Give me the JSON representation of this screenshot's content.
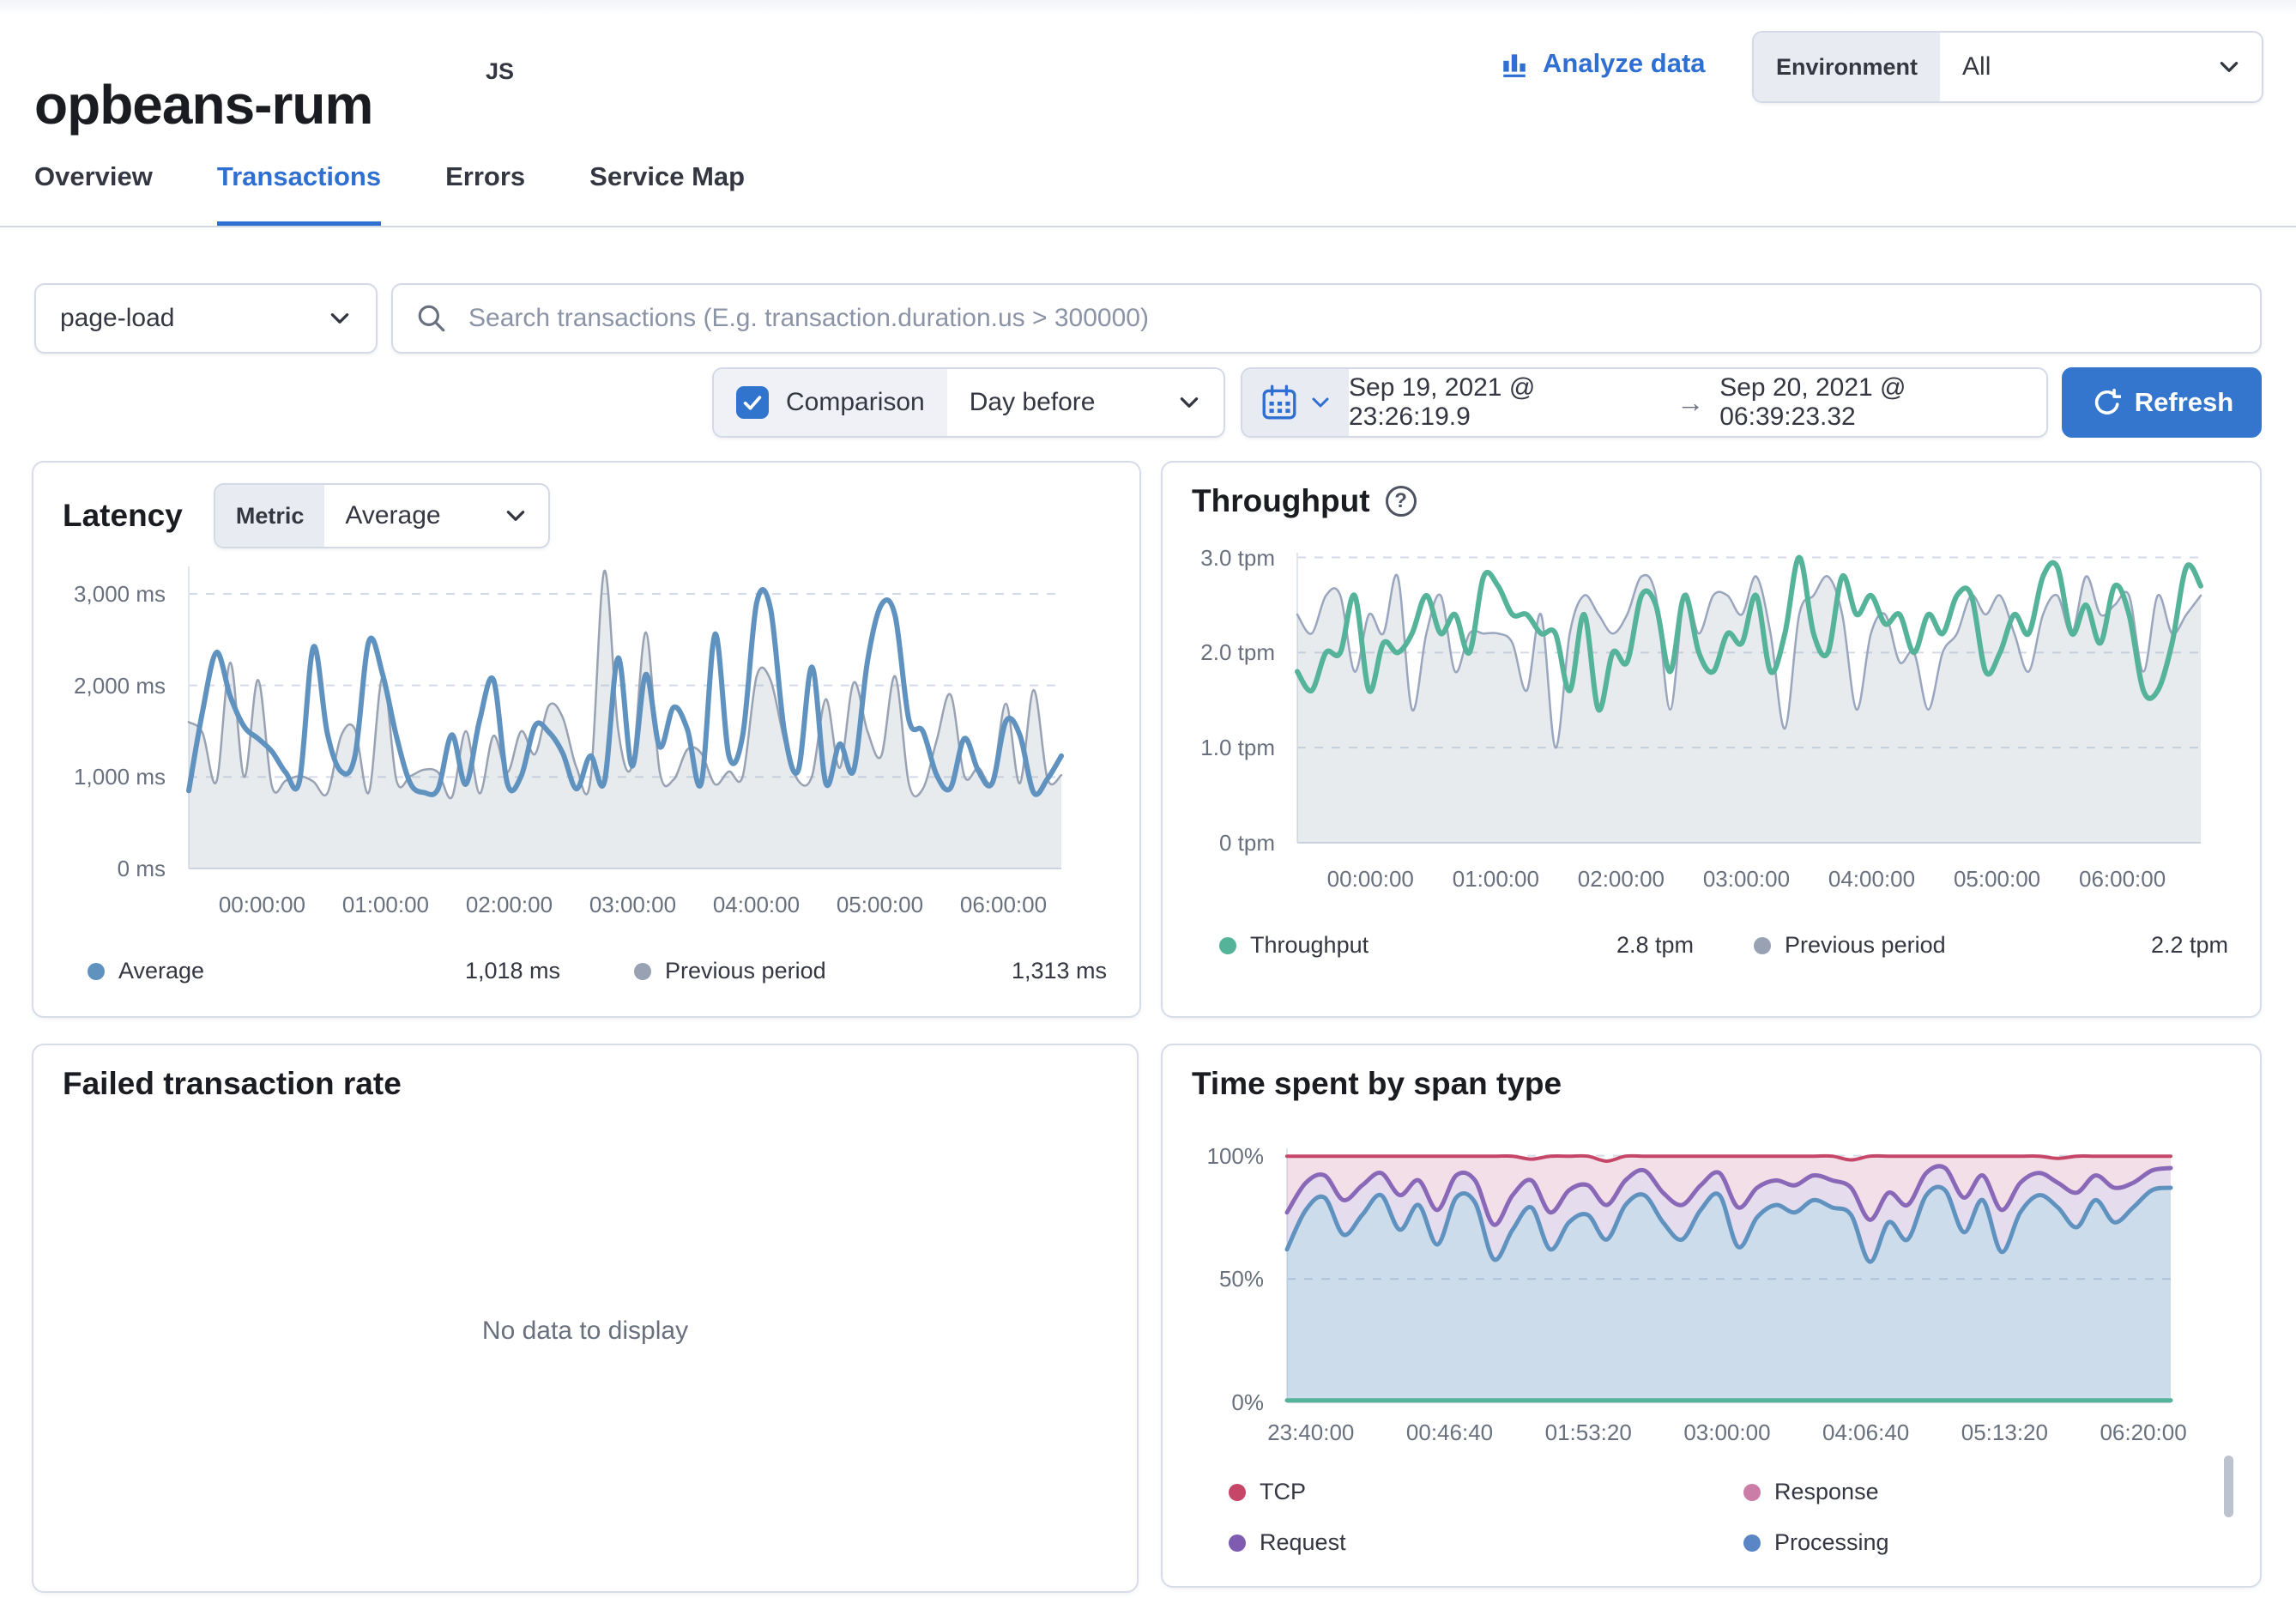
{
  "header": {
    "service_name": "opbeans-rum",
    "agent_badge": "JS",
    "analyze_label": "Analyze data",
    "environment_label": "Environment",
    "environment_value": "All"
  },
  "tabs": [
    {
      "label": "Overview",
      "active": false
    },
    {
      "label": "Transactions",
      "active": true
    },
    {
      "label": "Errors",
      "active": false
    },
    {
      "label": "Service Map",
      "active": false
    }
  ],
  "filters": {
    "transaction_type": "page-load",
    "search_placeholder": "Search transactions (E.g. transaction.duration.us > 300000)",
    "comparison_label": "Comparison",
    "comparison_checked": true,
    "comparison_value": "Day before",
    "date_start": "Sep 19, 2021 @ 23:26:19.9",
    "date_end": "Sep 20, 2021 @ 06:39:23.32",
    "refresh_label": "Refresh"
  },
  "panels": {
    "latency": {
      "title": "Latency",
      "metric_label": "Metric",
      "metric_value": "Average"
    },
    "throughput": {
      "title": "Throughput"
    },
    "failed": {
      "title": "Failed transaction rate",
      "empty_message": "No data to display"
    },
    "timespent": {
      "title": "Time spent by span type"
    }
  },
  "colors": {
    "accent": "#2e6fd1",
    "button_fill": "#3476cd",
    "border": "#d3dae6",
    "text": "#343741",
    "subdued": "#69707d",
    "latency_line": "#6092c0",
    "previous_period": "#98a2b3",
    "throughput_line": "#54b399",
    "tcp": "#c64668",
    "response": "#cb7da8",
    "request": "#8a68b8",
    "processing": "#6092c0"
  },
  "chart_data": [
    {
      "type": "line",
      "title": "Latency",
      "ylabel": "ms",
      "ylim": [
        0,
        3300
      ],
      "grid": true,
      "legend_position": "bottom",
      "yticks": [
        {
          "v": 3000,
          "label": "3,000 ms"
        },
        {
          "v": 2000,
          "label": "2,000 ms"
        },
        {
          "v": 1000,
          "label": "1,000 ms"
        },
        {
          "v": 0,
          "label": "0 ms"
        }
      ],
      "xlabels": [
        "00:00:00",
        "01:00:00",
        "02:00:00",
        "03:00:00",
        "04:00:00",
        "05:00:00",
        "06:00:00"
      ],
      "series": [
        {
          "name": "Previous period",
          "color": "#98a2b3",
          "width": 2.5,
          "fillTo": "zero",
          "fill": "rgba(152,162,179,0.22)",
          "values": [
            1600,
            1480,
            950,
            2250,
            1000,
            2060,
            900,
            960,
            1010,
            950,
            820,
            1450,
            1520,
            830,
            2100,
            960,
            1010,
            1080,
            1050,
            780,
            1500,
            820,
            1450,
            1050,
            1500,
            1250,
            1780,
            1650,
            1100,
            960,
            3250,
            1520,
            1120,
            2580,
            1060,
            970,
            1300,
            1260,
            920,
            1060,
            1010,
            2100,
            2060,
            1400,
            960,
            1010,
            1850,
            1100,
            2030,
            1500,
            1230,
            2100,
            920,
            870,
            1400,
            1900,
            1010,
            1100,
            960,
            1800,
            930,
            1950,
            980,
            1020
          ]
        },
        {
          "name": "Average",
          "color": "#6092c0",
          "width": 6,
          "fillTo": null,
          "fill": null,
          "values": [
            850,
            1720,
            2360,
            1880,
            1550,
            1420,
            1280,
            1050,
            960,
            2420,
            1480,
            1060,
            1230,
            2480,
            2120,
            1440,
            930,
            830,
            870,
            1460,
            920,
            1620,
            2060,
            930,
            1010,
            1560,
            1490,
            1260,
            870,
            1230,
            940,
            2300,
            1120,
            2120,
            1330,
            1760,
            1520,
            930,
            2560,
            1230,
            1460,
            2900,
            2840,
            1500,
            1070,
            2200,
            930,
            1360,
            1070,
            2260,
            2880,
            2760,
            1620,
            1500,
            1020,
            880,
            1420,
            1070,
            930,
            1610,
            1460,
            830,
            980,
            1230
          ]
        }
      ],
      "legend": [
        {
          "label": "Average",
          "value": "1,018 ms",
          "color": "#6092c0"
        },
        {
          "label": "Previous period",
          "value": "1,313 ms",
          "color": "#98a2b3"
        }
      ]
    },
    {
      "type": "line",
      "title": "Throughput",
      "ylabel": "tpm",
      "ylim": [
        0,
        3.05
      ],
      "grid": true,
      "legend_position": "bottom",
      "yticks": [
        {
          "v": 3,
          "label": "3.0 tpm"
        },
        {
          "v": 2,
          "label": "2.0 tpm"
        },
        {
          "v": 1,
          "label": "1.0 tpm"
        },
        {
          "v": 0,
          "label": "0 tpm"
        }
      ],
      "xlabels": [
        "00:00:00",
        "01:00:00",
        "02:00:00",
        "03:00:00",
        "04:00:00",
        "05:00:00",
        "06:00:00"
      ],
      "series": [
        {
          "name": "Previous period",
          "color": "#9aa5be",
          "width": 2.5,
          "fillTo": "zero",
          "fill": "rgba(152,162,179,0.22)",
          "values": [
            2.4,
            2.2,
            2.6,
            2.6,
            1.8,
            2.4,
            2.2,
            2.8,
            1.4,
            2.2,
            2.6,
            1.8,
            2.2,
            2.2,
            2.2,
            2.1,
            1.6,
            2.4,
            1.0,
            2.2,
            2.6,
            2.4,
            2.2,
            2.4,
            2.8,
            2.6,
            1.4,
            2.6,
            2.2,
            2.6,
            2.6,
            2.4,
            2.8,
            2.2,
            1.2,
            2.4,
            2.6,
            2.8,
            2.4,
            1.4,
            2.2,
            2.4,
            1.9,
            2.0,
            1.4,
            2.0,
            2.2,
            2.6,
            2.4,
            2.6,
            2.2,
            1.8,
            2.4,
            2.6,
            2.2,
            2.8,
            2.4,
            2.5,
            2.6,
            1.8,
            2.6,
            2.2,
            2.4,
            2.6
          ]
        },
        {
          "name": "Throughput",
          "color": "#54b399",
          "width": 6,
          "fillTo": null,
          "fill": null,
          "values": [
            1.8,
            1.6,
            2.0,
            2.0,
            2.6,
            1.6,
            2.1,
            2.0,
            2.2,
            2.6,
            2.2,
            2.4,
            2.0,
            2.8,
            2.7,
            2.4,
            2.4,
            2.2,
            2.2,
            1.6,
            2.4,
            1.4,
            2.0,
            1.9,
            2.6,
            2.5,
            1.8,
            2.6,
            2.0,
            1.8,
            2.2,
            2.1,
            2.6,
            1.8,
            2.2,
            3.0,
            2.2,
            2.0,
            2.8,
            2.4,
            2.6,
            2.3,
            2.4,
            2.0,
            2.4,
            2.2,
            2.6,
            2.6,
            1.8,
            2.0,
            2.4,
            2.2,
            2.8,
            2.9,
            2.2,
            2.5,
            2.1,
            2.7,
            2.4,
            1.6,
            1.6,
            2.1,
            2.9,
            2.7
          ]
        }
      ],
      "legend": [
        {
          "label": "Throughput",
          "value": "2.8 tpm",
          "color": "#54b399"
        },
        {
          "label": "Previous period",
          "value": "2.2 tpm",
          "color": "#98a2b3"
        }
      ]
    },
    {
      "type": "area-stacked",
      "title": "Time spent by span type",
      "ylabel": "%",
      "ylim": [
        0,
        103
      ],
      "grid": true,
      "legend_position": "bottom",
      "yticks": [
        {
          "v": 100,
          "label": "100%"
        },
        {
          "v": 50,
          "label": "50%"
        },
        {
          "v": 0,
          "label": "0%"
        }
      ],
      "xlabels": [
        "23:40:00",
        "00:46:40",
        "01:53:20",
        "03:00:00",
        "04:06:40",
        "05:13:20",
        "06:20:00"
      ],
      "series": [
        {
          "name": "tcp-top",
          "color": "#c64668",
          "width": 4,
          "fillTo": "request-top",
          "fill": "rgba(202,120,159,0.24)",
          "values": [
            99.8,
            99.8,
            99.8,
            99.8,
            99.8,
            99.8,
            99.8,
            99.8,
            99.8,
            99.8,
            99.8,
            99.8,
            99.8,
            98.6,
            99.8,
            99.8,
            99.8,
            97.8,
            99.8,
            99.8,
            99.8,
            99.8,
            99.8,
            99.8,
            99.8,
            99.8,
            99.8,
            99.8,
            99.8,
            99.8,
            98.3,
            99.8,
            99.8,
            99.8,
            99.8,
            99.8,
            99.8,
            99.8,
            99.8,
            99.8,
            99.8,
            98.9,
            99.8,
            99.8,
            99.8,
            99.8,
            99.8,
            99.8
          ]
        },
        {
          "name": "request-top",
          "color": "#8a68b8",
          "width": 5,
          "fillTo": "processing-top",
          "fill": "rgba(145,112,184,0.24)",
          "values": [
            77,
            89,
            92,
            82,
            88,
            93,
            84,
            90,
            78,
            92,
            90,
            72,
            84,
            90,
            77,
            86,
            88,
            80,
            90,
            94,
            85,
            80,
            88,
            93,
            79,
            87,
            90,
            88,
            92,
            90,
            87,
            74,
            85,
            80,
            93,
            95,
            83,
            92,
            78,
            89,
            93,
            89,
            85,
            92,
            87,
            89,
            94,
            95
          ]
        },
        {
          "name": "processing-top",
          "color": "#6092c0",
          "width": 5,
          "fillTo": "zero",
          "fill": "rgba(96,146,192,0.32)",
          "values": [
            62,
            78,
            83,
            68,
            76,
            84,
            70,
            80,
            64,
            83,
            81,
            58,
            70,
            79,
            62,
            73,
            76,
            66,
            80,
            84,
            73,
            66,
            78,
            84,
            63,
            75,
            80,
            77,
            82,
            79,
            76,
            57,
            73,
            66,
            84,
            86,
            69,
            82,
            61,
            77,
            84,
            79,
            71,
            82,
            73,
            79,
            86,
            87
          ]
        },
        {
          "name": "tcp-baseline",
          "color": "#54b399",
          "width": 5,
          "fillTo": null,
          "fill": null,
          "values": [
            0.8,
            0.8
          ]
        }
      ],
      "legend": [
        {
          "label": "TCP",
          "value": "",
          "color": "#c64668"
        },
        {
          "label": "Response",
          "value": "",
          "color": "#cb7da8"
        },
        {
          "label": "Request",
          "value": "",
          "color": "#7e5cb0"
        },
        {
          "label": "Processing",
          "value": "",
          "color": "#5a86c6"
        }
      ]
    }
  ]
}
